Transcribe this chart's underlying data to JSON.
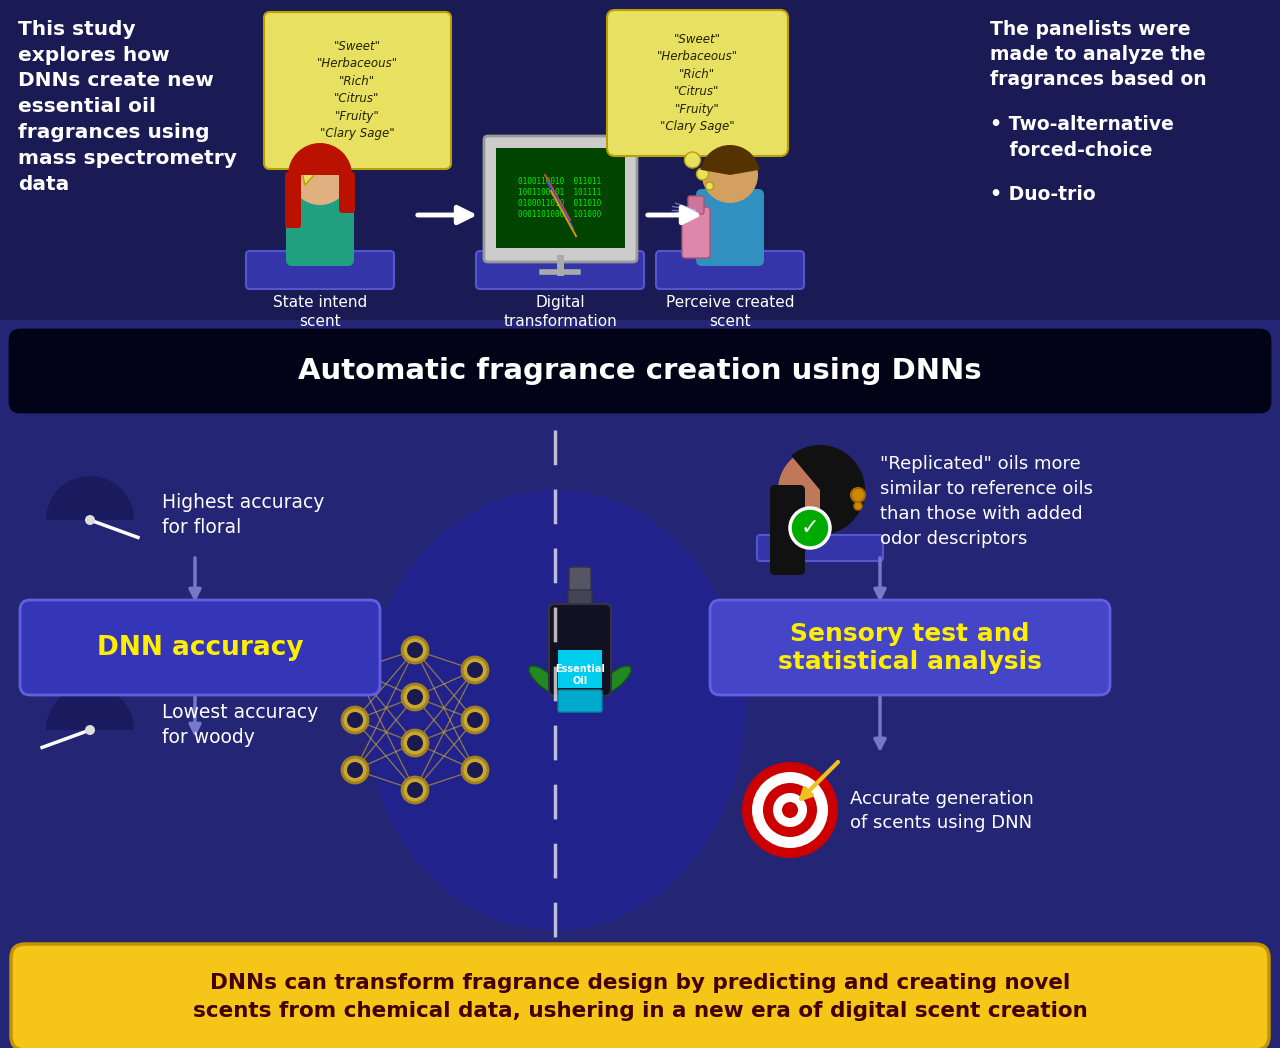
{
  "bg_color": "#1e1e6e",
  "top_section_color": "#1a1a55",
  "bottom_section_color": "#252580",
  "banner_color": "#050520",
  "banner_text": "Automatic fragrance creation using DNNs",
  "left_title": "This study\nexplores how\nDNNs create new\nessential oil\nfragrances using\nmass spectrometry\ndata",
  "right_title": "The panelists were\nmade to analyze the\nfragrances based on",
  "bullet1": "• Two-alternative\n   forced-choice",
  "bullet2": "• Duo-trio",
  "speech1": "\"Sweet\"\n\"Herbaceous\"\n\"Rich\"\n\"Citrus\"\n\"Fruity\"\n\"Clary Sage\"",
  "speech2": "\"Sweet\"\n\"Herbaceous\"\n\"Rich\"\n\"Citrus\"\n\"Fruity\"\n\"Clary Sage\"",
  "label1": "State intend\nscent",
  "label2": "Digital\ntransformation",
  "label3": "Perceive created\nscent",
  "dnn_text": "DNN accuracy",
  "sensory_text": "Sensory test and\nstatistical analysis",
  "highest_text": "Highest accuracy\nfor floral",
  "lowest_text": "Lowest accuracy\nfor woody",
  "replicated_text": "\"Replicated\" oils more\nsimilar to reference oils\nthan those with added\nodor descriptors",
  "accurate_text": "Accurate generation\nof scents using DNN",
  "bottom_text": "DNNs can transform fragrance design by predicting and creating novel\nscents from chemical data, ushering in a new era of digital scent creation",
  "yellow_color": "#f5c518",
  "dnn_box_color": "#3535b8",
  "sensory_box_color": "#4545c8",
  "hex_color": "#3535a0",
  "oval_color": "#2828a0"
}
